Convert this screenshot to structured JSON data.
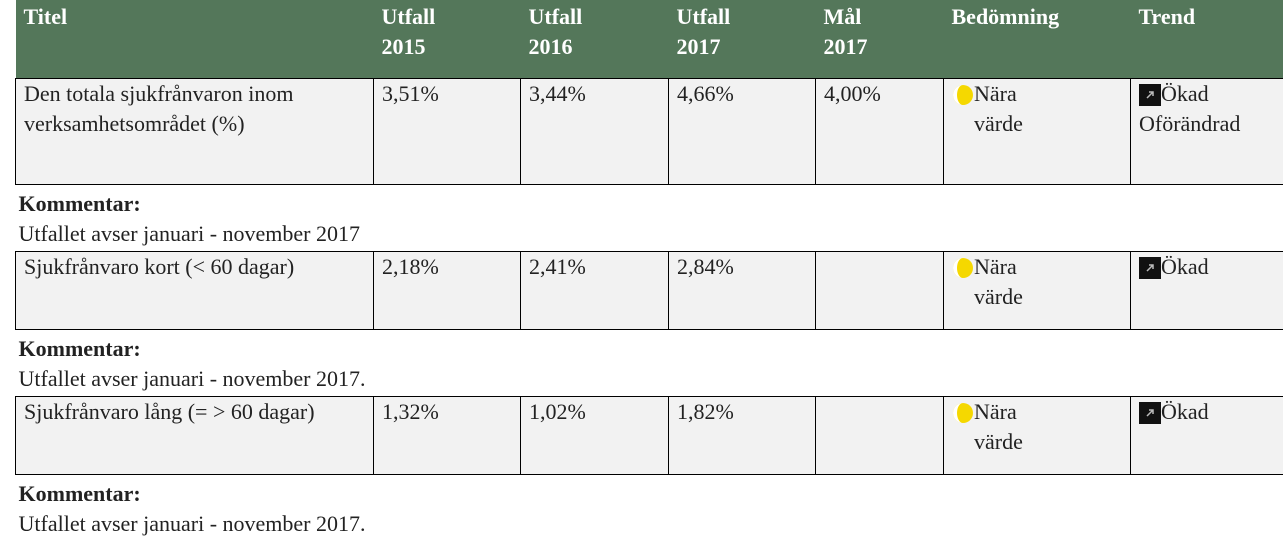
{
  "table": {
    "columns": [
      "Titel",
      "Utfall 2015",
      "Utfall 2016",
      "Utfall 2017",
      "Mål 2017",
      "Bedömning",
      "Trend"
    ],
    "rows": [
      {
        "title": "Den totala sjukfrånvaron inom verksamhetsområdet (%)",
        "values": [
          "3,51%",
          "3,44%",
          "4,66%",
          "4,00%"
        ],
        "assessment": "Nära värde",
        "trend": "Ökad Oförändrad",
        "comment_label": "Kommentar:",
        "comment": "Utfallet avser januari - november 2017"
      },
      {
        "title": "Sjukfrånvaro kort (< 60 dagar)",
        "values": [
          "2,18%",
          "2,41%",
          "2,84%"
        ],
        "assessment": "Nära värde",
        "trend": "Ökad",
        "comment_label": "Kommentar:",
        "comment": "Utfallet avser januari - november 2017."
      },
      {
        "title": "Sjukfrånvaro lång (= > 60 dagar)",
        "values": [
          "1,32%",
          "1,02%",
          "1,82%"
        ],
        "assessment": "Nära värde",
        "trend": "Ökad",
        "comment_label": "Kommentar:",
        "comment": "Utfallet avser januari - november 2017."
      }
    ]
  }
}
